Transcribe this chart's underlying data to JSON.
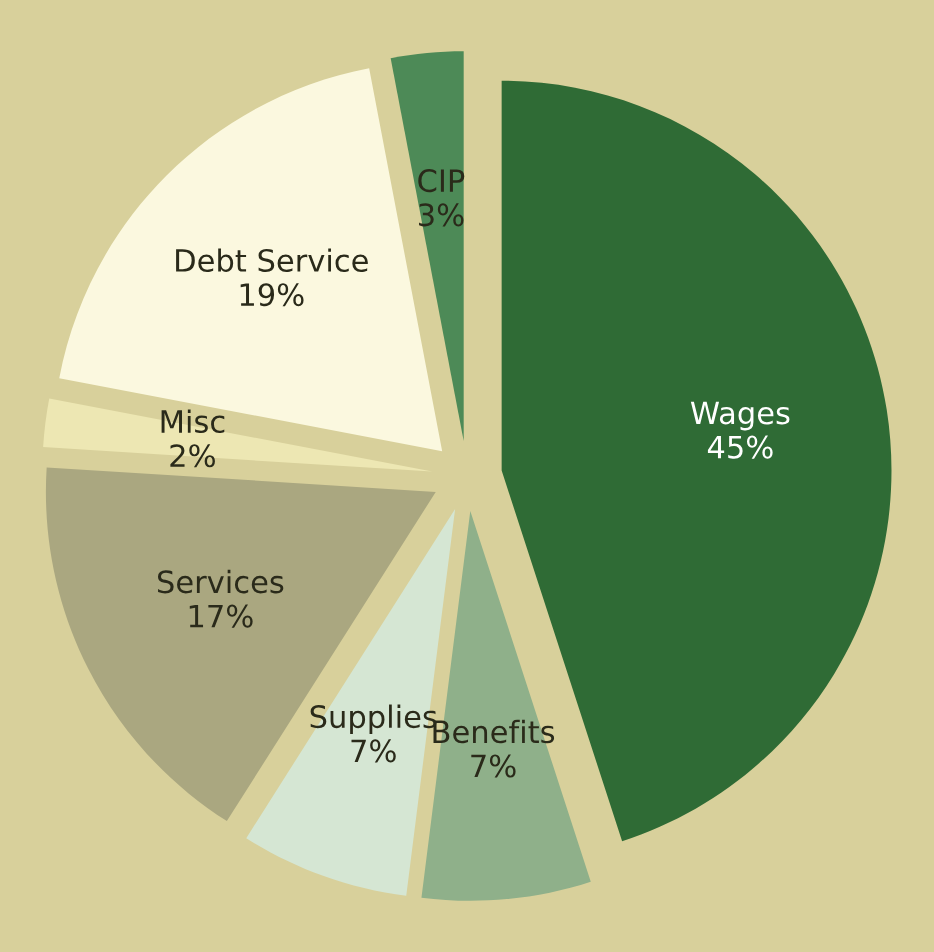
{
  "chart_data": {
    "type": "pie",
    "categories": [
      "Wages",
      "Benefits",
      "Supplies",
      "Services",
      "Misc",
      "Debt Service",
      "CIP"
    ],
    "values": [
      45,
      7,
      7,
      17,
      2,
      19,
      3
    ],
    "value_labels": [
      "45%",
      "7%",
      "7%",
      "17%",
      "2%",
      "19%",
      "3%"
    ],
    "colors": [
      "#2f6b35",
      "#8fb08a",
      "#d5e6d3",
      "#aaa780",
      "#ede7b3",
      "#fbf8df",
      "#4d8a57"
    ]
  }
}
